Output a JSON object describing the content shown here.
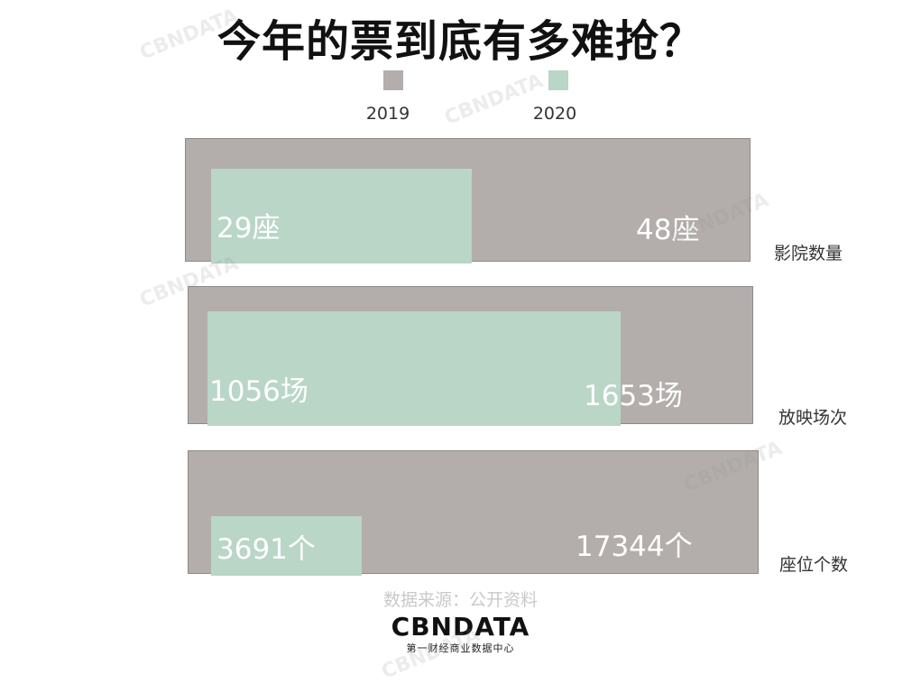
{
  "title": "今年的票到底有多难抢？",
  "source": "数据来源：公开资料",
  "logo": {
    "name": "CBNDATA",
    "subtitle": "第一财经商业数据中心",
    "watermark": "CBNDATA"
  },
  "colors": {
    "y2019": "#b3aeab",
    "y2020": "#b9d6c6"
  },
  "chart_data": {
    "type": "bar",
    "orientation": "horizontal",
    "legend_position": "top",
    "series": [
      {
        "name": "2019"
      },
      {
        "name": "2020"
      }
    ],
    "categories": [
      {
        "label": "影院数量",
        "v2019": 48,
        "v2020": 29,
        "label2019": "48座",
        "label2020": "29座"
      },
      {
        "label": "放映场次",
        "v2019": 1653,
        "v2020": 1056,
        "label2019": "1653场",
        "label2020": "1056场"
      },
      {
        "label": "座位个数",
        "v2019": 17344,
        "v2020": 3691,
        "label2019": "17344个",
        "label2020": "3691个"
      }
    ]
  }
}
